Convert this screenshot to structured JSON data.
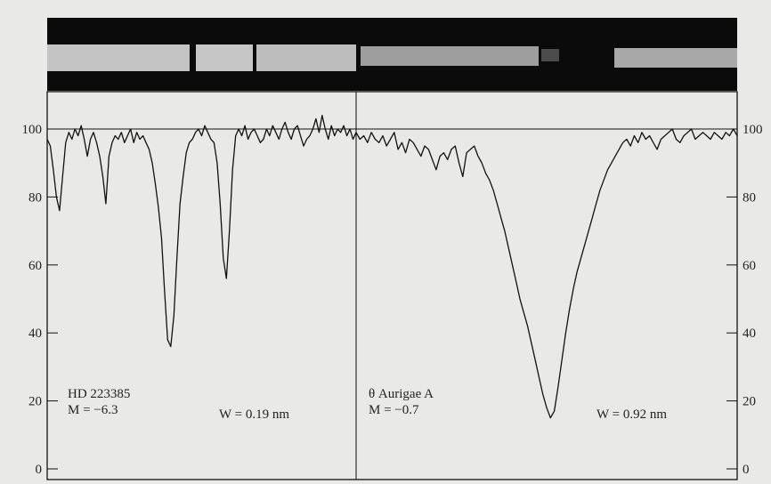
{
  "chart_data": [
    {
      "type": "line",
      "title": "",
      "xlabel": "",
      "ylabel": "",
      "ylim": [
        0,
        110
      ],
      "yticks": [
        0,
        20,
        40,
        60,
        80,
        100
      ],
      "grid": false,
      "reference_line": 100,
      "spectrum_strip": "photographic spectrum strip above plot (dark band with bright continuum, absorption gaps)",
      "series": [
        {
          "name": "HD 223385",
          "x": [
            0,
            1,
            2,
            3,
            4,
            5,
            6,
            7,
            8,
            9,
            10,
            11,
            12,
            13,
            14,
            15,
            16,
            17,
            18,
            19,
            20,
            21,
            22,
            23,
            24,
            25,
            26,
            27,
            28,
            29,
            30,
            31,
            32,
            33,
            34,
            35,
            36,
            37,
            38,
            39,
            40,
            41,
            42,
            43,
            44,
            45,
            46,
            47,
            48,
            49,
            50,
            51,
            52,
            53,
            54,
            55,
            56,
            57,
            58,
            59,
            60,
            61,
            62,
            63,
            64,
            65,
            66,
            67,
            68,
            69,
            70,
            71,
            72,
            73,
            74,
            75,
            76,
            77,
            78,
            79,
            80,
            81,
            82,
            83,
            84,
            85,
            86,
            87,
            88,
            89,
            90,
            91,
            92,
            93,
            94,
            95,
            96,
            97,
            98,
            99,
            100
          ],
          "values": [
            97,
            95,
            88,
            80,
            76,
            86,
            96,
            99,
            97,
            100,
            98,
            101,
            97,
            92,
            97,
            99,
            96,
            92,
            86,
            78,
            92,
            96,
            98,
            97,
            99,
            96,
            98,
            100,
            96,
            99,
            97,
            98,
            96,
            94,
            90,
            84,
            77,
            68,
            52,
            38,
            36,
            45,
            62,
            78,
            86,
            93,
            96,
            97,
            99,
            100,
            98,
            101,
            99,
            97,
            96,
            90,
            78,
            62,
            56,
            70,
            88,
            98,
            100,
            98,
            101,
            97,
            99,
            100,
            98,
            96,
            97,
            100,
            98,
            101,
            99,
            97,
            100,
            102,
            99,
            97,
            100,
            101,
            98,
            95,
            97,
            98,
            100,
            103,
            99,
            104,
            100,
            97,
            101,
            98,
            100,
            99,
            101,
            98,
            100,
            97,
            99
          ],
          "annotation_name": "HD 223385",
          "annotation_mag": "M = −6.3",
          "annotation_width": "W = 0.19 nm"
        },
        {
          "name": "θ Aurigae A",
          "x": [
            0,
            1,
            2,
            3,
            4,
            5,
            6,
            7,
            8,
            9,
            10,
            11,
            12,
            13,
            14,
            15,
            16,
            17,
            18,
            19,
            20,
            21,
            22,
            23,
            24,
            25,
            26,
            27,
            28,
            29,
            30,
            31,
            32,
            33,
            34,
            35,
            36,
            37,
            38,
            39,
            40,
            41,
            42,
            43,
            44,
            45,
            46,
            47,
            48,
            49,
            50,
            51,
            52,
            53,
            54,
            55,
            56,
            57,
            58,
            59,
            60,
            61,
            62,
            63,
            64,
            65,
            66,
            67,
            68,
            69,
            70,
            71,
            72,
            73,
            74,
            75,
            76,
            77,
            78,
            79,
            80,
            81,
            82,
            83,
            84,
            85,
            86,
            87,
            88,
            89,
            90,
            91,
            92,
            93,
            94,
            95,
            96,
            97,
            98,
            99,
            100
          ],
          "values": [
            99,
            97,
            98,
            96,
            99,
            97,
            96,
            98,
            95,
            97,
            99,
            94,
            96,
            93,
            97,
            96,
            94,
            92,
            95,
            94,
            91,
            88,
            92,
            93,
            91,
            94,
            95,
            90,
            86,
            93,
            94,
            95,
            92,
            90,
            87,
            85,
            82,
            78,
            74,
            70,
            65,
            60,
            55,
            50,
            46,
            42,
            37,
            32,
            27,
            22,
            18,
            15,
            17,
            24,
            32,
            40,
            47,
            53,
            58,
            62,
            66,
            70,
            74,
            78,
            82,
            85,
            88,
            90,
            92,
            94,
            96,
            97,
            95,
            98,
            96,
            99,
            97,
            98,
            96,
            94,
            97,
            98,
            99,
            100,
            97,
            96,
            98,
            99,
            100,
            97,
            98,
            99,
            98,
            97,
            99,
            98,
            97,
            99,
            98,
            100,
            98
          ],
          "annotation_name": "θ Aurigae A",
          "annotation_mag": "M = −0.7",
          "annotation_width": "W = 0.92 nm"
        }
      ]
    }
  ]
}
